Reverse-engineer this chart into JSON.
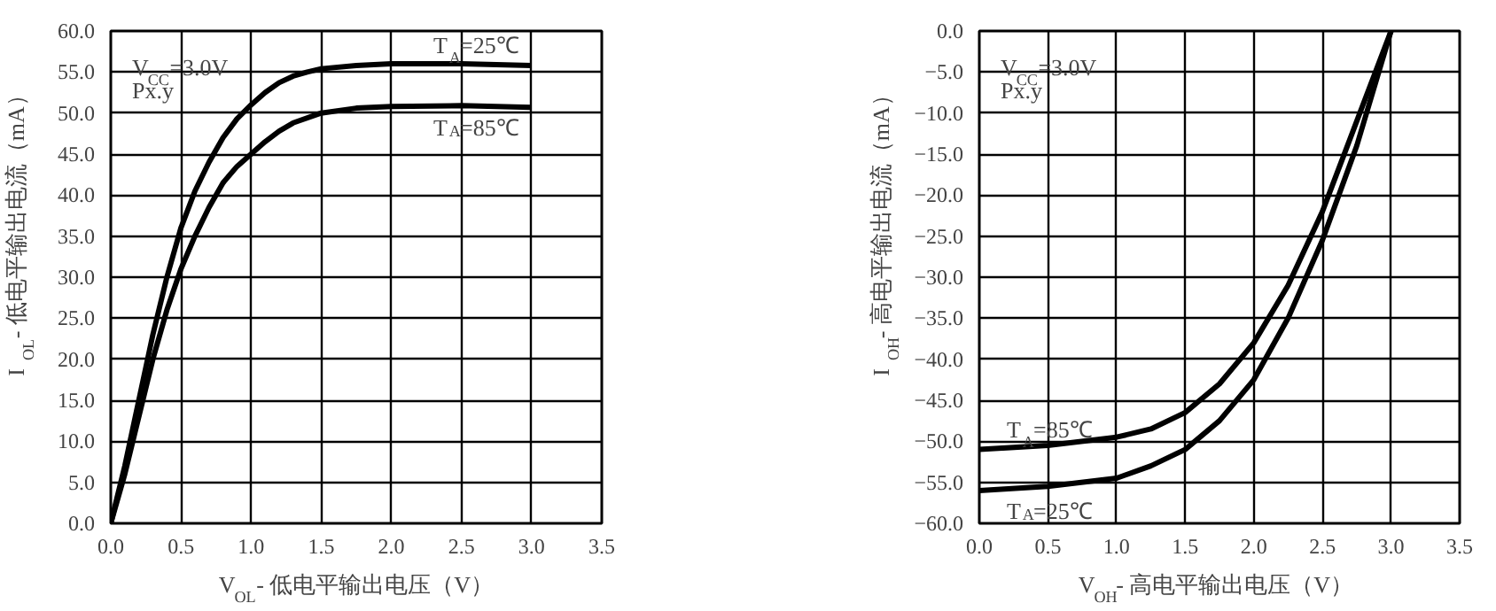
{
  "chart_data": [
    {
      "type": "line",
      "xlabel": "V$_{OL}$- 低电平输出电压（V）",
      "ylabel": "I$_{OL}$- 低电平输出电流（mA）",
      "annotations": [
        "V$_{CC}$=3.0V",
        "Px.y"
      ],
      "series": [
        {
          "name": "T$_{A}$=25℃",
          "color": "#000000",
          "x": [
            0,
            0.1,
            0.2,
            0.3,
            0.4,
            0.5,
            0.6,
            0.7,
            0.8,
            0.9,
            1.0,
            1.1,
            1.2,
            1.3,
            1.4,
            1.5,
            1.75,
            2.0,
            2.5,
            3.0
          ],
          "values": [
            0,
            7,
            15,
            23,
            30,
            36,
            40.5,
            44,
            47,
            49.3,
            51,
            52.5,
            53.7,
            54.5,
            55,
            55.4,
            55.8,
            56,
            56,
            55.8
          ]
        },
        {
          "name": "T$_{A}$=85℃",
          "color": "#000000",
          "x": [
            0,
            0.1,
            0.2,
            0.3,
            0.4,
            0.5,
            0.6,
            0.7,
            0.8,
            0.9,
            1.0,
            1.1,
            1.2,
            1.3,
            1.5,
            1.75,
            2.0,
            2.5,
            3.0
          ],
          "values": [
            0,
            6,
            13,
            20,
            26,
            31,
            35,
            38.5,
            41.5,
            43.5,
            45,
            46.5,
            47.8,
            48.8,
            50,
            50.6,
            50.8,
            50.9,
            50.7
          ]
        }
      ],
      "xlim": [
        0,
        3.5
      ],
      "ylim": [
        0,
        60
      ],
      "xticks": [
        {
          "value": 0,
          "label": "0.0"
        },
        0.5,
        {
          "value": 1,
          "label": "1.0"
        },
        1.5,
        {
          "value": 2,
          "label": "2.0"
        },
        2.5,
        {
          "value": 3,
          "label": "3.0"
        },
        3.5
      ],
      "yticks": [
        {
          "value": 0,
          "label": "0.0"
        },
        {
          "value": 5,
          "label": "5.0"
        },
        {
          "value": 10,
          "label": "10.0"
        },
        {
          "value": 15,
          "label": "15.0"
        },
        {
          "value": 20,
          "label": "20.0"
        },
        {
          "value": 25,
          "label": "25.0"
        },
        {
          "value": 30,
          "label": "30.0"
        },
        {
          "value": 35,
          "label": "35.0"
        },
        {
          "value": 40,
          "label": "40.0"
        },
        {
          "value": 45,
          "label": "45.0"
        },
        {
          "value": 50,
          "label": "50.0"
        },
        {
          "value": 55,
          "label": "55.0"
        },
        {
          "value": 60,
          "label": "60.0"
        }
      ],
      "grid": true,
      "marker": "none",
      "line_style": "solid"
    },
    {
      "type": "line",
      "xlabel": "V$_{OH}$- 高电平输出电压（V）",
      "ylabel": "I$_{OH}$- 高电平输出电流（mA）",
      "annotations": [
        "V$_{CC}$=3.0V",
        "Px.y"
      ],
      "series": [
        {
          "name": "T$_{A}$=85℃",
          "color": "#000000",
          "x": [
            0,
            0.5,
            1.0,
            1.25,
            1.5,
            1.75,
            2.0,
            2.25,
            2.5,
            2.75,
            3.0
          ],
          "values": [
            -51,
            -50.5,
            -49.5,
            -48.5,
            -46.5,
            -43,
            -38,
            -31,
            -22,
            -11,
            0
          ]
        },
        {
          "name": "T$_{A}$=25℃",
          "color": "#000000",
          "x": [
            0,
            0.5,
            1.0,
            1.25,
            1.5,
            1.75,
            2.0,
            2.25,
            2.5,
            2.75,
            3.0
          ],
          "values": [
            -56,
            -55.5,
            -54.5,
            -53,
            -51,
            -47.5,
            -42.5,
            -35,
            -25.5,
            -14,
            0
          ]
        }
      ],
      "xlim": [
        0,
        3.5
      ],
      "ylim": [
        -60,
        0
      ],
      "xticks": [
        {
          "value": 0,
          "label": "0.0"
        },
        0.5,
        {
          "value": 1,
          "label": "1.0"
        },
        1.5,
        {
          "value": 2,
          "label": "2.0"
        },
        2.5,
        {
          "value": 3,
          "label": "3.0"
        },
        3.5
      ],
      "yticks": [
        {
          "value": 0,
          "label": "0.0"
        },
        {
          "value": -5,
          "label": "−5.0"
        },
        {
          "value": -10,
          "label": "−10.0"
        },
        {
          "value": -15,
          "label": "−15.0"
        },
        {
          "value": -20,
          "label": "−20.0"
        },
        {
          "value": -25,
          "label": "−25.0"
        },
        {
          "value": -30,
          "label": "−30.0"
        },
        {
          "value": -35,
          "label": "−35.0"
        },
        {
          "value": -40,
          "label": "−40.0"
        },
        {
          "value": -45,
          "label": "−45.0"
        },
        {
          "value": -50,
          "label": "−50.0"
        },
        {
          "value": -55,
          "label": "−55.0"
        },
        {
          "value": -60,
          "label": "−60.0"
        }
      ],
      "grid": true,
      "marker": "none",
      "line_style": "solid"
    }
  ]
}
